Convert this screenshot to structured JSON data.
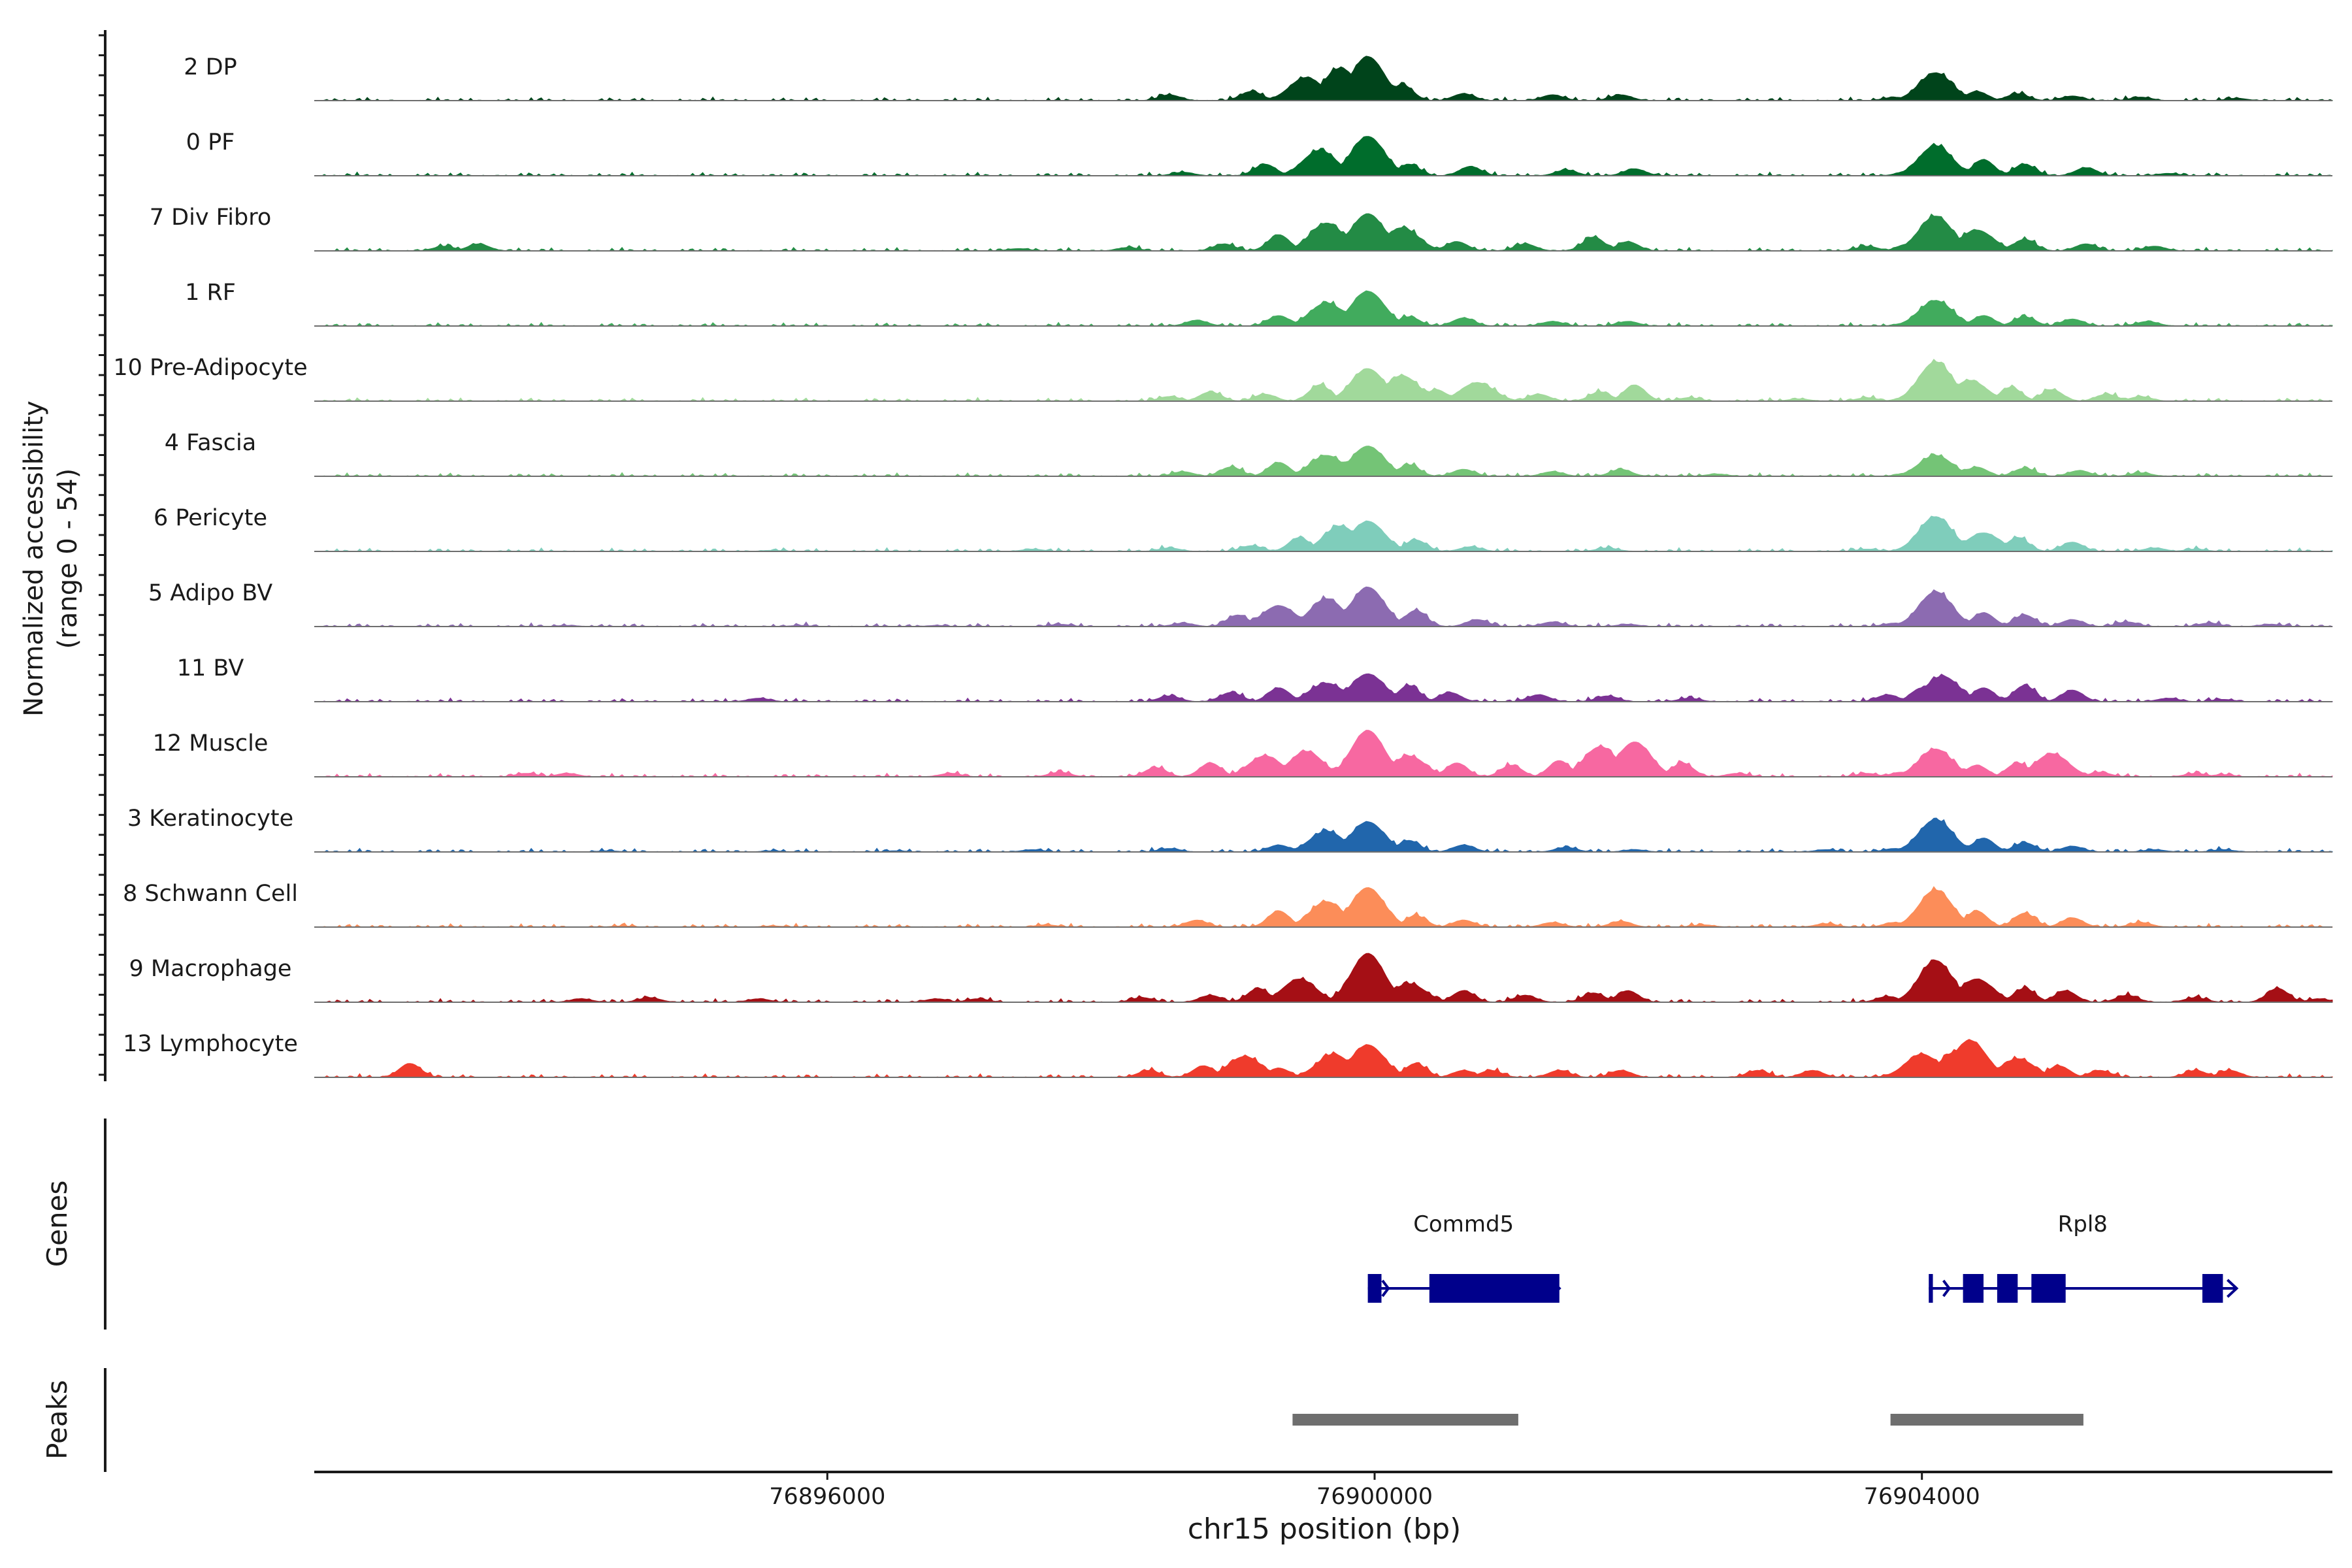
{
  "chart_data": {
    "type": "area",
    "title": "",
    "ylabel": "Normalized accessibility",
    "ylabel_range": "(range 0 - 54)",
    "xlabel": "chr15 position (bp)",
    "xlim": [
      76892250,
      76907000
    ],
    "ylim": [
      0,
      54
    ],
    "x_ticks": [
      {
        "value": 76896000,
        "label": "76896000"
      },
      {
        "value": 76900000,
        "label": "76900000"
      },
      {
        "value": 76904000,
        "label": "76904000"
      }
    ],
    "series": [
      {
        "name": "2 DP",
        "color": "#00441b",
        "peaks": [
          [
            76898500,
            5
          ],
          [
            76899100,
            8
          ],
          [
            76899500,
            20
          ],
          [
            76899750,
            28
          ],
          [
            76899950,
            38
          ],
          [
            76900200,
            14
          ],
          [
            76900650,
            6
          ],
          [
            76901300,
            5
          ],
          [
            76901800,
            5
          ],
          [
            76903800,
            3
          ],
          [
            76904100,
            24
          ],
          [
            76904400,
            8
          ],
          [
            76904700,
            6
          ],
          [
            76905100,
            4
          ],
          [
            76905600,
            3
          ],
          [
            76906300,
            2
          ]
        ]
      },
      {
        "name": "0 PF",
        "color": "#006d2c",
        "peaks": [
          [
            76898600,
            3
          ],
          [
            76899200,
            10
          ],
          [
            76899600,
            22
          ],
          [
            76899950,
            34
          ],
          [
            76900250,
            10
          ],
          [
            76900700,
            8
          ],
          [
            76901400,
            5
          ],
          [
            76901900,
            6
          ],
          [
            76903900,
            4
          ],
          [
            76904100,
            26
          ],
          [
            76904450,
            14
          ],
          [
            76904750,
            10
          ],
          [
            76905200,
            7
          ],
          [
            76905800,
            2
          ]
        ]
      },
      {
        "name": "7 Div Fibro",
        "color": "#238b45",
        "peaks": [
          [
            76893200,
            4
          ],
          [
            76893450,
            6
          ],
          [
            76897400,
            2
          ],
          [
            76898200,
            3
          ],
          [
            76898900,
            6
          ],
          [
            76899300,
            14
          ],
          [
            76899650,
            24
          ],
          [
            76899950,
            32
          ],
          [
            76900200,
            20
          ],
          [
            76900600,
            8
          ],
          [
            76901100,
            6
          ],
          [
            76901600,
            12
          ],
          [
            76901850,
            8
          ],
          [
            76903600,
            4
          ],
          [
            76903900,
            6
          ],
          [
            76904100,
            30
          ],
          [
            76904400,
            18
          ],
          [
            76904750,
            10
          ],
          [
            76905200,
            6
          ],
          [
            76905700,
            4
          ]
        ]
      },
      {
        "name": "1 RF",
        "color": "#41ab5d",
        "peaks": [
          [
            76898700,
            5
          ],
          [
            76899300,
            9
          ],
          [
            76899650,
            20
          ],
          [
            76899950,
            30
          ],
          [
            76900250,
            8
          ],
          [
            76900650,
            7
          ],
          [
            76901300,
            4
          ],
          [
            76901850,
            4
          ],
          [
            76903900,
            3
          ],
          [
            76904100,
            22
          ],
          [
            76904450,
            9
          ],
          [
            76904750,
            8
          ],
          [
            76905100,
            6
          ],
          [
            76905650,
            4
          ]
        ]
      },
      {
        "name": "10 Pre-Adipocyte",
        "color": "#a1d99b",
        "peaks": [
          [
            76898500,
            4
          ],
          [
            76898800,
            8
          ],
          [
            76899200,
            6
          ],
          [
            76899600,
            14
          ],
          [
            76899950,
            28
          ],
          [
            76900200,
            22
          ],
          [
            76900450,
            10
          ],
          [
            76900750,
            16
          ],
          [
            76901200,
            6
          ],
          [
            76901650,
            8
          ],
          [
            76901900,
            14
          ],
          [
            76902300,
            3
          ],
          [
            76903100,
            2
          ],
          [
            76903600,
            3
          ],
          [
            76903900,
            4
          ],
          [
            76904100,
            34
          ],
          [
            76904350,
            18
          ],
          [
            76904650,
            12
          ],
          [
            76904950,
            10
          ],
          [
            76905350,
            6
          ],
          [
            76905600,
            4
          ]
        ]
      },
      {
        "name": "4 Fascia",
        "color": "#74c476",
        "peaks": [
          [
            76898600,
            4
          ],
          [
            76898950,
            8
          ],
          [
            76899300,
            12
          ],
          [
            76899650,
            18
          ],
          [
            76899950,
            26
          ],
          [
            76900250,
            10
          ],
          [
            76900650,
            6
          ],
          [
            76901300,
            4
          ],
          [
            76901800,
            6
          ],
          [
            76902500,
            2
          ],
          [
            76903900,
            3
          ],
          [
            76904100,
            18
          ],
          [
            76904400,
            8
          ],
          [
            76904750,
            7
          ],
          [
            76905150,
            5
          ],
          [
            76905600,
            3
          ]
        ]
      },
      {
        "name": "6 Pericyte",
        "color": "#7fcdbb",
        "peaks": [
          [
            76895600,
            1
          ],
          [
            76897500,
            2
          ],
          [
            76898500,
            3
          ],
          [
            76899100,
            5
          ],
          [
            76899450,
            12
          ],
          [
            76899750,
            22
          ],
          [
            76899950,
            26
          ],
          [
            76900300,
            10
          ],
          [
            76900700,
            4
          ],
          [
            76901700,
            3
          ],
          [
            76903600,
            2
          ],
          [
            76904100,
            30
          ],
          [
            76904450,
            16
          ],
          [
            76904700,
            12
          ],
          [
            76905100,
            8
          ],
          [
            76905700,
            3
          ],
          [
            76906000,
            2
          ]
        ]
      },
      {
        "name": "5 Adipo BV",
        "color": "#8c6bb1",
        "peaks": [
          [
            76894100,
            1
          ],
          [
            76895800,
            1
          ],
          [
            76896800,
            1
          ],
          [
            76897700,
            2
          ],
          [
            76898600,
            3
          ],
          [
            76899000,
            10
          ],
          [
            76899300,
            18
          ],
          [
            76899650,
            24
          ],
          [
            76899950,
            34
          ],
          [
            76900300,
            14
          ],
          [
            76900750,
            6
          ],
          [
            76901300,
            4
          ],
          [
            76901850,
            2
          ],
          [
            76903800,
            3
          ],
          [
            76904100,
            30
          ],
          [
            76904450,
            12
          ],
          [
            76904750,
            10
          ],
          [
            76905100,
            6
          ],
          [
            76905500,
            4
          ],
          [
            76906100,
            3
          ],
          [
            76906550,
            2
          ]
        ]
      },
      {
        "name": "11 BV",
        "color": "#7b3294",
        "peaks": [
          [
            76895500,
            3
          ],
          [
            76898500,
            5
          ],
          [
            76898950,
            8
          ],
          [
            76899300,
            12
          ],
          [
            76899650,
            16
          ],
          [
            76899950,
            24
          ],
          [
            76900250,
            14
          ],
          [
            76900550,
            8
          ],
          [
            76901200,
            6
          ],
          [
            76901700,
            5
          ],
          [
            76902300,
            3
          ],
          [
            76903750,
            6
          ],
          [
            76904000,
            12
          ],
          [
            76904150,
            22
          ],
          [
            76904450,
            12
          ],
          [
            76904750,
            14
          ],
          [
            76905100,
            10
          ],
          [
            76905800,
            3
          ],
          [
            76906200,
            2
          ]
        ]
      },
      {
        "name": "12 Muscle",
        "color": "#f768a1",
        "peaks": [
          [
            76893800,
            3
          ],
          [
            76894100,
            3
          ],
          [
            76896900,
            3
          ],
          [
            76897700,
            4
          ],
          [
            76898400,
            8
          ],
          [
            76898800,
            12
          ],
          [
            76899200,
            18
          ],
          [
            76899500,
            22
          ],
          [
            76899950,
            40
          ],
          [
            76900250,
            18
          ],
          [
            76900600,
            12
          ],
          [
            76901000,
            10
          ],
          [
            76901350,
            14
          ],
          [
            76901650,
            26
          ],
          [
            76901900,
            30
          ],
          [
            76902250,
            12
          ],
          [
            76902650,
            3
          ],
          [
            76903600,
            3
          ],
          [
            76903850,
            4
          ],
          [
            76904100,
            24
          ],
          [
            76904400,
            10
          ],
          [
            76904700,
            12
          ],
          [
            76904950,
            20
          ],
          [
            76905300,
            4
          ],
          [
            76906000,
            3
          ],
          [
            76906200,
            2
          ]
        ]
      },
      {
        "name": "3 Keratinocyte",
        "color": "#2166ac",
        "peaks": [
          [
            76894400,
            1
          ],
          [
            76895600,
            1
          ],
          [
            76896500,
            1
          ],
          [
            76897500,
            2
          ],
          [
            76898500,
            3
          ],
          [
            76899300,
            6
          ],
          [
            76899650,
            18
          ],
          [
            76899950,
            26
          ],
          [
            76900250,
            10
          ],
          [
            76900650,
            6
          ],
          [
            76901400,
            4
          ],
          [
            76901900,
            2
          ],
          [
            76903300,
            2
          ],
          [
            76903800,
            3
          ],
          [
            76904100,
            28
          ],
          [
            76904450,
            12
          ],
          [
            76904750,
            8
          ],
          [
            76905100,
            5
          ],
          [
            76905700,
            2
          ],
          [
            76906200,
            2
          ]
        ]
      },
      {
        "name": "8 Schwann Cell",
        "color": "#fc8d59",
        "peaks": [
          [
            76894500,
            1
          ],
          [
            76895600,
            1
          ],
          [
            76897600,
            2
          ],
          [
            76898700,
            6
          ],
          [
            76899300,
            14
          ],
          [
            76899650,
            22
          ],
          [
            76899950,
            34
          ],
          [
            76900300,
            10
          ],
          [
            76900650,
            6
          ],
          [
            76901300,
            4
          ],
          [
            76901800,
            5
          ],
          [
            76902400,
            2
          ],
          [
            76903300,
            3
          ],
          [
            76903800,
            4
          ],
          [
            76904100,
            32
          ],
          [
            76904400,
            14
          ],
          [
            76904750,
            12
          ],
          [
            76905100,
            8
          ],
          [
            76905600,
            4
          ]
        ]
      },
      {
        "name": "9 Macrophage",
        "color": "#a50f15",
        "peaks": [
          [
            76894200,
            3
          ],
          [
            76894700,
            4
          ],
          [
            76895500,
            3
          ],
          [
            76896800,
            3
          ],
          [
            76897100,
            3
          ],
          [
            76898300,
            4
          ],
          [
            76898800,
            6
          ],
          [
            76899150,
            12
          ],
          [
            76899450,
            20
          ],
          [
            76899950,
            42
          ],
          [
            76900250,
            16
          ],
          [
            76900650,
            10
          ],
          [
            76901100,
            6
          ],
          [
            76901600,
            8
          ],
          [
            76901850,
            10
          ],
          [
            76903750,
            5
          ],
          [
            76904100,
            36
          ],
          [
            76904400,
            20
          ],
          [
            76904750,
            12
          ],
          [
            76905050,
            10
          ],
          [
            76905500,
            6
          ],
          [
            76906000,
            4
          ],
          [
            76906600,
            12
          ],
          [
            76906900,
            3
          ]
        ]
      },
      {
        "name": "13 Lymphocyte",
        "color": "#ef3b2c",
        "peaks": [
          [
            76892950,
            12
          ],
          [
            76898350,
            6
          ],
          [
            76898750,
            10
          ],
          [
            76899050,
            18
          ],
          [
            76899300,
            8
          ],
          [
            76899700,
            20
          ],
          [
            76899950,
            28
          ],
          [
            76900300,
            12
          ],
          [
            76900650,
            6
          ],
          [
            76900850,
            6
          ],
          [
            76901350,
            6
          ],
          [
            76901800,
            6
          ],
          [
            76902800,
            6
          ],
          [
            76903200,
            6
          ],
          [
            76904000,
            20
          ],
          [
            76904250,
            22
          ],
          [
            76904350,
            32
          ],
          [
            76904700,
            16
          ],
          [
            76905000,
            10
          ],
          [
            76905300,
            6
          ],
          [
            76906000,
            6
          ],
          [
            76906250,
            6
          ]
        ]
      }
    ],
    "genes_label": "Genes",
    "genes": [
      {
        "name": "Commd5",
        "start": 76899950,
        "end": 76901350,
        "strand": "+",
        "exons": [
          [
            76899950,
            76900050
          ],
          [
            76900400,
            76901350
          ]
        ]
      },
      {
        "name": "Rpl8",
        "start": 76904050,
        "end": 76906300,
        "strand": "+",
        "exons": [
          [
            76904050,
            76904080
          ],
          [
            76904300,
            76904450
          ],
          [
            76904550,
            76904700
          ],
          [
            76904800,
            76905050
          ],
          [
            76906050,
            76906200
          ]
        ]
      }
    ],
    "peaks_label": "Peaks",
    "peaks": [
      {
        "start": 76899400,
        "end": 76901050
      },
      {
        "start": 76903770,
        "end": 76905180
      }
    ]
  }
}
